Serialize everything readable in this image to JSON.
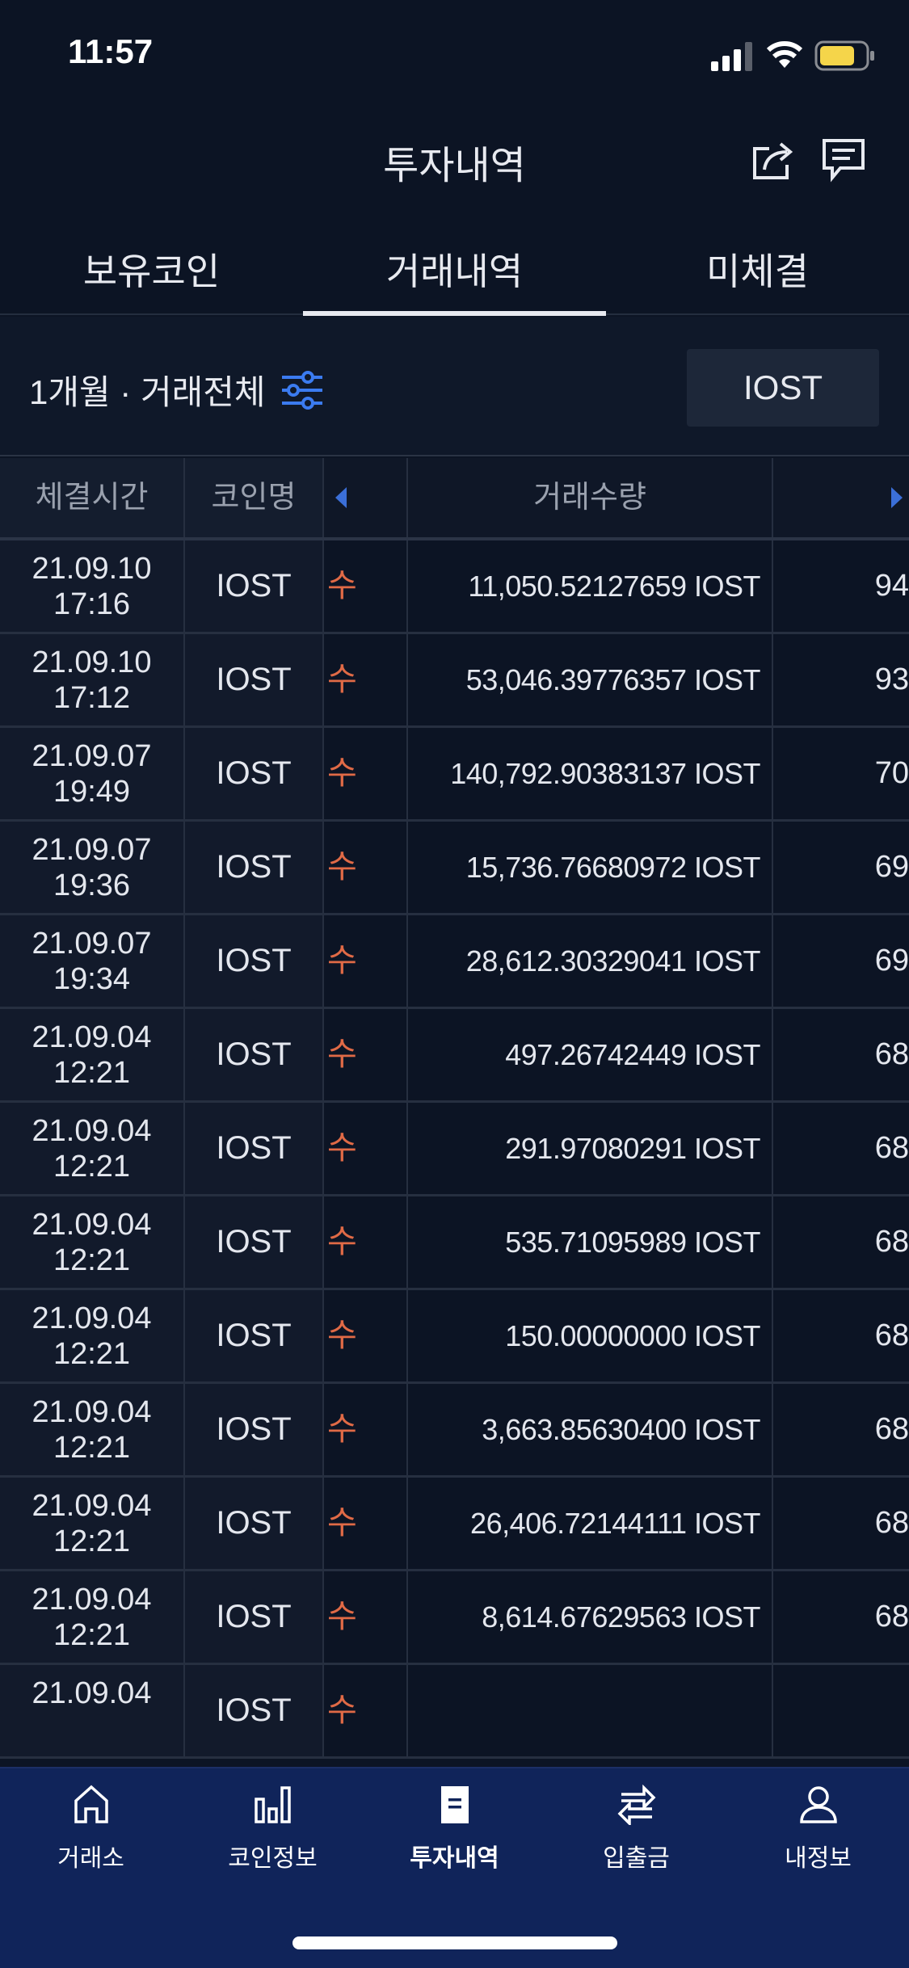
{
  "status_bar": {
    "time": "11:57",
    "battery_color": "#f5d54a"
  },
  "header": {
    "title": "투자내역",
    "icons": [
      "share-icon",
      "chat-icon"
    ]
  },
  "tabs": [
    {
      "label": "보유코인"
    },
    {
      "label": "거래내역",
      "active": true
    },
    {
      "label": "미체결"
    }
  ],
  "filter": {
    "text": "1개월 · 거래전체",
    "icon": "filter-sliders-icon",
    "coin_button": "IOST"
  },
  "table": {
    "headers": [
      "체결시간",
      "코인명",
      "",
      "거래수량",
      ""
    ],
    "rows": [
      {
        "date": "21.09.10",
        "time": "17:16",
        "coin": "IOST",
        "type": "수",
        "amount": "11,050.52127659 IOST",
        "price": "94"
      },
      {
        "date": "21.09.10",
        "time": "17:12",
        "coin": "IOST",
        "type": "수",
        "amount": "53,046.39776357 IOST",
        "price": "93"
      },
      {
        "date": "21.09.07",
        "time": "19:49",
        "coin": "IOST",
        "type": "수",
        "amount": "140,792.90383137 IOST",
        "price": "70"
      },
      {
        "date": "21.09.07",
        "time": "19:36",
        "coin": "IOST",
        "type": "수",
        "amount": "15,736.76680972 IOST",
        "price": "69"
      },
      {
        "date": "21.09.07",
        "time": "19:34",
        "coin": "IOST",
        "type": "수",
        "amount": "28,612.30329041 IOST",
        "price": "69"
      },
      {
        "date": "21.09.04",
        "time": "12:21",
        "coin": "IOST",
        "type": "수",
        "amount": "497.26742449 IOST",
        "price": "68"
      },
      {
        "date": "21.09.04",
        "time": "12:21",
        "coin": "IOST",
        "type": "수",
        "amount": "291.97080291 IOST",
        "price": "68"
      },
      {
        "date": "21.09.04",
        "time": "12:21",
        "coin": "IOST",
        "type": "수",
        "amount": "535.71095989 IOST",
        "price": "68"
      },
      {
        "date": "21.09.04",
        "time": "12:21",
        "coin": "IOST",
        "type": "수",
        "amount": "150.00000000 IOST",
        "price": "68"
      },
      {
        "date": "21.09.04",
        "time": "12:21",
        "coin": "IOST",
        "type": "수",
        "amount": "3,663.85630400 IOST",
        "price": "68"
      },
      {
        "date": "21.09.04",
        "time": "12:21",
        "coin": "IOST",
        "type": "수",
        "amount": "26,406.72144111 IOST",
        "price": "68"
      },
      {
        "date": "21.09.04",
        "time": "12:21",
        "coin": "IOST",
        "type": "수",
        "amount": "8,614.67629563 IOST",
        "price": "68"
      },
      {
        "date": "21.09.04",
        "time": "",
        "coin": "IOST",
        "type": "수",
        "amount": "",
        "price": ""
      }
    ],
    "buy_color": "#e06a46"
  },
  "bottom_nav": [
    {
      "label": "거래소",
      "icon": "home-icon"
    },
    {
      "label": "코인정보",
      "icon": "bar-chart-icon"
    },
    {
      "label": "투자내역",
      "icon": "document-icon",
      "active": true
    },
    {
      "label": "입출금",
      "icon": "transfer-arrows-icon"
    },
    {
      "label": "내정보",
      "icon": "user-icon"
    }
  ]
}
